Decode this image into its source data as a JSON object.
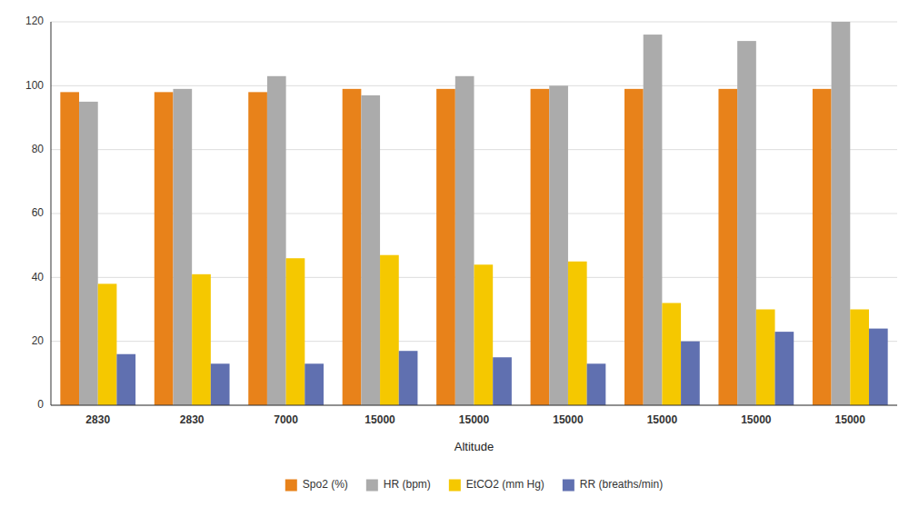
{
  "chart_data": {
    "type": "bar",
    "categories": [
      "2830",
      "2830",
      "7000",
      "15000",
      "15000",
      "15000",
      "15000",
      "15000",
      "15000"
    ],
    "series": [
      {
        "name": "Spo2 (%)",
        "color": "#E8821A",
        "values": [
          98,
          98,
          98,
          99,
          99,
          99,
          99,
          99,
          99
        ]
      },
      {
        "name": "HR (bpm)",
        "color": "#ABABAB",
        "values": [
          95,
          99,
          103,
          97,
          103,
          100,
          116,
          114,
          120
        ]
      },
      {
        "name": "EtCO2 (mm Hg)",
        "color": "#F5C800",
        "values": [
          38,
          41,
          46,
          47,
          44,
          45,
          32,
          30,
          30
        ]
      },
      {
        "name": "RR (breaths/min)",
        "color": "#6070B0",
        "values": [
          16,
          13,
          13,
          17,
          15,
          13,
          20,
          23,
          24
        ]
      }
    ],
    "xlabel": "Altitude",
    "ylim": [
      0,
      120
    ],
    "yticks": [
      0,
      20,
      40,
      60,
      80,
      100,
      120
    ],
    "grid": true,
    "legend": "bottom"
  }
}
